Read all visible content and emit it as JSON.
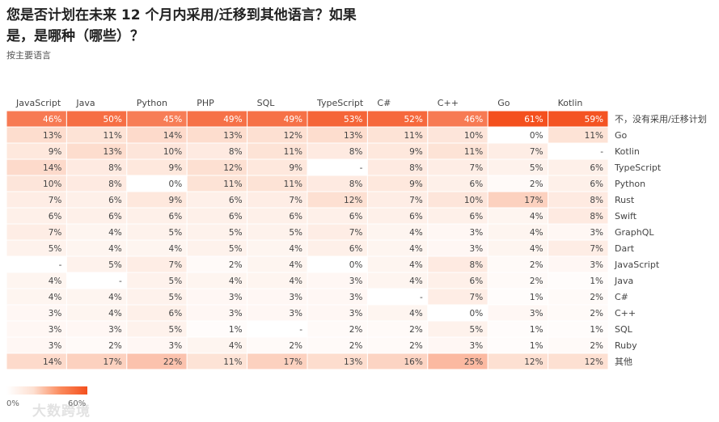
{
  "title": "您是否计划在未来 12 个月内采用/迁移到其他语言？如果是，是哪种（哪些）？",
  "subtitle": "按主要语言",
  "watermark": "大数跨境",
  "legend": {
    "min": "0%",
    "max": "60%"
  },
  "colors": {
    "low": "#ffffff",
    "mid": "#fde0d2",
    "high": "#f4501e"
  },
  "chart_data": {
    "type": "heatmap",
    "title": "您是否计划在未来 12 个月内采用/迁移到其他语言？如果是，是哪种（哪些）？",
    "subtitle": "按主要语言",
    "columns": [
      "JavaScript",
      "Java",
      "Python",
      "PHP",
      "SQL",
      "TypeScript",
      "C#",
      "C++",
      "Go",
      "Kotlin"
    ],
    "rows": [
      "不，没有采用/迁移计划",
      "Go",
      "Kotlin",
      "TypeScript",
      "Python",
      "Rust",
      "Swift",
      "GraphQL",
      "Dart",
      "JavaScript",
      "Java",
      "C#",
      "C++",
      "SQL",
      "Ruby",
      "其他"
    ],
    "values": [
      [
        46,
        50,
        45,
        49,
        49,
        53,
        52,
        46,
        61,
        59
      ],
      [
        13,
        11,
        14,
        13,
        12,
        13,
        11,
        10,
        0,
        11
      ],
      [
        9,
        13,
        10,
        8,
        11,
        8,
        9,
        11,
        7,
        null
      ],
      [
        14,
        8,
        9,
        12,
        9,
        null,
        8,
        7,
        5,
        6
      ],
      [
        10,
        8,
        0,
        11,
        11,
        8,
        9,
        6,
        2,
        6
      ],
      [
        7,
        6,
        9,
        6,
        7,
        12,
        7,
        10,
        17,
        8
      ],
      [
        6,
        6,
        6,
        6,
        6,
        6,
        6,
        6,
        4,
        8
      ],
      [
        7,
        4,
        5,
        5,
        5,
        7,
        4,
        3,
        4,
        3
      ],
      [
        5,
        4,
        4,
        5,
        4,
        6,
        4,
        3,
        4,
        7
      ],
      [
        null,
        5,
        7,
        2,
        4,
        0,
        4,
        8,
        2,
        3
      ],
      [
        4,
        null,
        5,
        4,
        4,
        3,
        4,
        6,
        2,
        1
      ],
      [
        4,
        4,
        5,
        3,
        3,
        3,
        null,
        7,
        1,
        2
      ],
      [
        3,
        4,
        6,
        3,
        3,
        3,
        4,
        0,
        3,
        2
      ],
      [
        3,
        3,
        5,
        1,
        null,
        2,
        2,
        5,
        1,
        1
      ],
      [
        3,
        2,
        3,
        4,
        2,
        2,
        2,
        3,
        1,
        2
      ],
      [
        14,
        17,
        22,
        11,
        17,
        13,
        16,
        25,
        12,
        12
      ]
    ],
    "value_suffix": "%",
    "missing_label": "-",
    "scale": [
      0,
      60
    ]
  }
}
